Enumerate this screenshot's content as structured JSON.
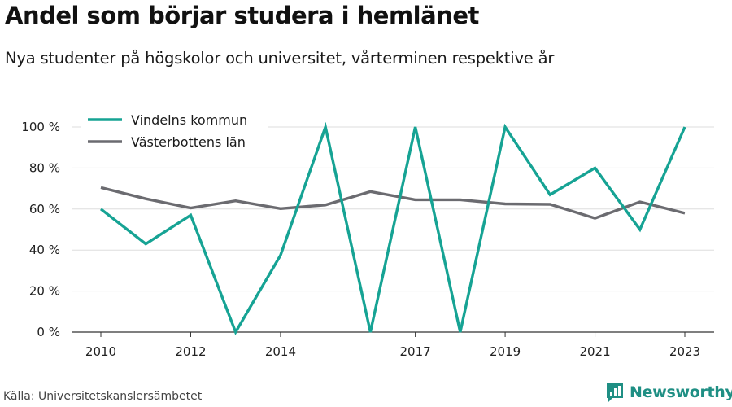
{
  "header": {
    "title": "Andel som börjar studera i hemlänet",
    "subtitle": "Nya studenter på högskolor och universitet, vårterminen respektive år"
  },
  "footer": {
    "source": "Källa: Universitetskanslersämbetet",
    "brand": "Newsworthy"
  },
  "colors": {
    "vindeln": "#16a394",
    "vasterbotten": "#6b6b70",
    "grid": "#dddddd",
    "axis": "#333333",
    "brand": "#1f8f84"
  },
  "chart_data": {
    "type": "line",
    "x": [
      2010,
      2011,
      2012,
      2013,
      2014,
      2015,
      2016,
      2017,
      2018,
      2019,
      2020,
      2021,
      2022,
      2023
    ],
    "x_tick_labels": [
      "2010",
      "2012",
      "2014",
      "2017",
      "2019",
      "2021",
      "2023"
    ],
    "y_tick_labels": [
      "0 %",
      "20 %",
      "40 %",
      "60 %",
      "80 %",
      "100 %"
    ],
    "y_ticks": [
      0,
      20,
      40,
      60,
      80,
      100
    ],
    "ylim": [
      0,
      100
    ],
    "grid": true,
    "legend_position": "top-left",
    "series": [
      {
        "name": "Vindelns kommun",
        "color": "#16a394",
        "values": [
          60,
          43,
          57,
          0,
          37.5,
          100,
          0,
          100,
          0,
          100,
          67,
          80,
          50,
          100
        ]
      },
      {
        "name": "Västerbottens län",
        "color": "#6b6b70",
        "values": [
          70.5,
          65,
          60.5,
          64,
          60.2,
          62,
          68.5,
          64.5,
          64.5,
          62.5,
          62.3,
          55.5,
          63.5,
          58
        ]
      }
    ]
  }
}
